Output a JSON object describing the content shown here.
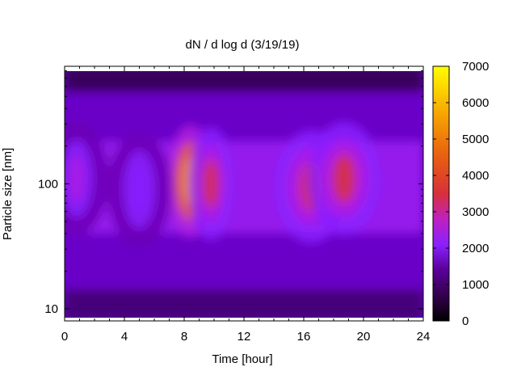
{
  "chart_data": {
    "type": "heatmap",
    "title": "dN / d log d (3/19/19)",
    "xlabel": "Time [hour]",
    "ylabel": "Particle size [nm]",
    "xlim": [
      0,
      24
    ],
    "ylim_nm": [
      8,
      870
    ],
    "y_scale": "log",
    "x_ticks": [
      0,
      4,
      8,
      12,
      16,
      20,
      24
    ],
    "x_tick_labels": [
      "0",
      "4",
      "8",
      "12",
      "16",
      "20",
      "24"
    ],
    "y_ticks": [
      10,
      100
    ],
    "y_tick_labels": [
      "10",
      "100"
    ],
    "colorbar": {
      "range": [
        0,
        7000
      ],
      "ticks": [
        0,
        1000,
        2000,
        3000,
        4000,
        5000,
        6000,
        7000
      ],
      "tick_labels": [
        "0",
        "1000",
        "2000",
        "3000",
        "4000",
        "5000",
        "6000",
        "7000"
      ],
      "colormap": [
        "#000000",
        "#3a0058",
        "#6a00b4",
        "#8a20ff",
        "#b020e0",
        "#d8303a",
        "#e86010",
        "#f8a000",
        "#ffff00"
      ]
    },
    "features": [
      {
        "time_h": 8.4,
        "size_nm": 105,
        "value": 6500
      },
      {
        "time_h": 9.8,
        "size_nm": 100,
        "value": 5000
      },
      {
        "time_h": 16.5,
        "size_nm": 95,
        "value": 4700
      },
      {
        "time_h": 18.7,
        "size_nm": 110,
        "value": 5000
      },
      {
        "time_h": 0.8,
        "size_nm": 110,
        "value": 3300
      },
      {
        "time_h": 5.0,
        "size_nm": 90,
        "value": 3100
      }
    ]
  }
}
